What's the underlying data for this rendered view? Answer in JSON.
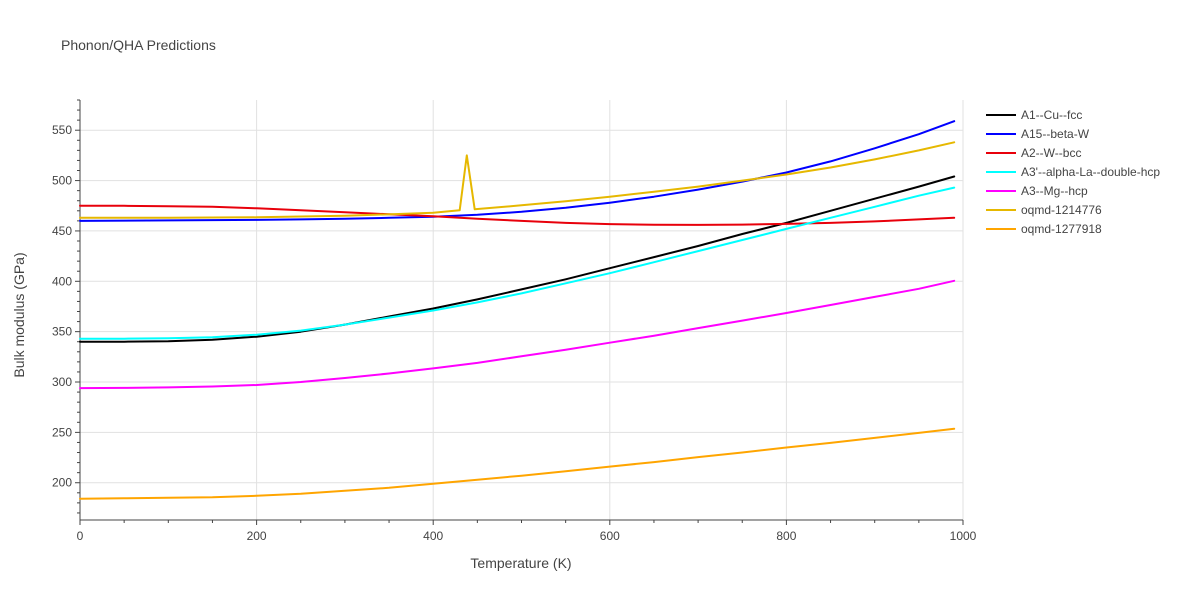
{
  "chart_data": {
    "type": "line",
    "title": "Phonon/QHA Predictions",
    "xlabel": "Temperature (K)",
    "ylabel": "Bulk modulus (GPa)",
    "xlim": [
      0,
      1000
    ],
    "ylim": [
      163,
      580
    ],
    "xticks": [
      0,
      200,
      400,
      600,
      800,
      1000
    ],
    "yticks": [
      200,
      250,
      300,
      350,
      400,
      450,
      500,
      550
    ],
    "grid": true,
    "legend_position": "right",
    "series": [
      {
        "name": "A1--Cu--fcc",
        "color": "#000000",
        "x": [
          0,
          50,
          100,
          150,
          200,
          250,
          300,
          350,
          400,
          450,
          500,
          550,
          600,
          650,
          700,
          750,
          800,
          850,
          900,
          950,
          990
        ],
        "y": [
          340,
          340,
          340.5,
          342,
          345,
          350,
          357,
          365,
          373,
          382,
          392,
          402,
          413,
          424,
          435,
          447,
          458,
          470,
          482,
          494,
          504
        ]
      },
      {
        "name": "A15--beta-W",
        "color": "#0000ff",
        "x": [
          0,
          100,
          200,
          250,
          300,
          350,
          400,
          450,
          500,
          550,
          600,
          650,
          700,
          750,
          800,
          850,
          900,
          950,
          990
        ],
        "y": [
          460,
          460.5,
          461,
          461.5,
          462,
          463,
          464,
          466,
          469,
          473,
          478,
          484,
          491,
          499,
          508,
          519,
          532,
          546,
          559
        ]
      },
      {
        "name": "A2--W--bcc",
        "color": "#e8000b",
        "x": [
          0,
          50,
          100,
          150,
          200,
          250,
          300,
          350,
          400,
          450,
          500,
          550,
          600,
          650,
          700,
          750,
          800,
          850,
          900,
          950,
          990
        ],
        "y": [
          475,
          475,
          474.5,
          474,
          472.5,
          470.5,
          468.5,
          466.5,
          464.5,
          462,
          460,
          458,
          456.8,
          456.2,
          456,
          456.3,
          457,
          458,
          459.5,
          461.5,
          463
        ]
      },
      {
        "name": "A3'--alpha-La--double-hcp",
        "color": "#00ffff",
        "x": [
          0,
          50,
          100,
          150,
          200,
          250,
          300,
          350,
          400,
          450,
          500,
          550,
          600,
          650,
          700,
          750,
          800,
          850,
          900,
          950,
          990
        ],
        "y": [
          343,
          343,
          343.5,
          344.5,
          347,
          351,
          357,
          364,
          371,
          379,
          388,
          398,
          408,
          419,
          430,
          441,
          452,
          463,
          474,
          485,
          493
        ]
      },
      {
        "name": "A3--Mg--hcp",
        "color": "#ff00ff",
        "x": [
          0,
          50,
          100,
          150,
          200,
          250,
          300,
          350,
          400,
          450,
          500,
          550,
          600,
          650,
          700,
          750,
          800,
          850,
          900,
          950,
          990
        ],
        "y": [
          294,
          294.2,
          294.7,
          295.5,
          297,
          300,
          304,
          308.5,
          313.5,
          319,
          325.5,
          332,
          339,
          346,
          353.5,
          361,
          368.5,
          376.5,
          384.5,
          392.5,
          400.5
        ]
      },
      {
        "name": "oqmd-1214776",
        "color": "#e6b800",
        "x": [
          0,
          100,
          200,
          300,
          400,
          430,
          438,
          447,
          500,
          550,
          600,
          650,
          700,
          750,
          800,
          850,
          900,
          950,
          990
        ],
        "y": [
          463,
          463,
          463.5,
          465,
          468,
          470.5,
          525,
          471.5,
          475.5,
          479.5,
          484,
          489,
          494,
          500,
          506,
          513,
          521,
          530,
          538
        ]
      },
      {
        "name": "oqmd-1277918",
        "color": "#ffa500",
        "x": [
          0,
          50,
          100,
          150,
          200,
          250,
          300,
          350,
          400,
          450,
          500,
          550,
          600,
          650,
          700,
          750,
          800,
          850,
          900,
          950,
          990
        ],
        "y": [
          184,
          184.5,
          185,
          185.5,
          187,
          189,
          192,
          195,
          199,
          203,
          207,
          211.5,
          216,
          220.5,
          225.5,
          230,
          235,
          239.5,
          244.5,
          249.5,
          253.5
        ]
      }
    ]
  }
}
